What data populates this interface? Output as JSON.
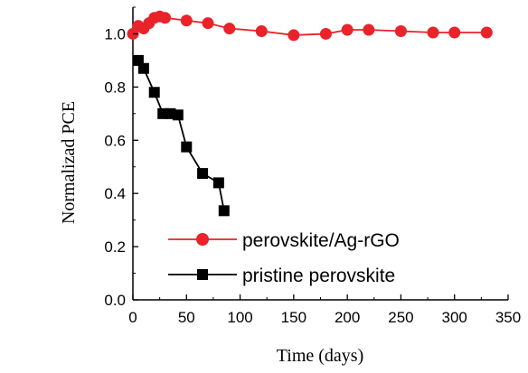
{
  "chart_data": {
    "type": "line",
    "xlabel": "Time (days)",
    "ylabel": "Normalizad PCE",
    "xlim": [
      0,
      350
    ],
    "ylim": [
      0.0,
      1.1
    ],
    "x_ticks": [
      0,
      50,
      100,
      150,
      200,
      250,
      300,
      350
    ],
    "x_tick_labels": [
      "0",
      "50",
      "100",
      "150",
      "200",
      "250",
      "300",
      "350"
    ],
    "y_ticks": [
      0.0,
      0.2,
      0.4,
      0.6,
      0.8,
      1.0
    ],
    "y_tick_labels": [
      "0.0",
      "0.2",
      "0.4",
      "0.6",
      "0.8",
      "1.0"
    ],
    "grid": false,
    "legend_position": "bottom-right",
    "series": [
      {
        "name": "perovskite/Ag-rGO",
        "color": "#e8232a",
        "marker": "circle",
        "x": [
          0,
          5,
          10,
          15,
          20,
          25,
          30,
          50,
          70,
          90,
          120,
          150,
          180,
          200,
          220,
          250,
          280,
          300,
          330
        ],
        "y": [
          1.0,
          1.03,
          1.02,
          1.04,
          1.06,
          1.065,
          1.06,
          1.05,
          1.04,
          1.02,
          1.01,
          0.995,
          1.0,
          1.015,
          1.015,
          1.01,
          1.005,
          1.005,
          1.005
        ]
      },
      {
        "name": "pristine perovskite",
        "color": "#000000",
        "marker": "square",
        "x": [
          5,
          10,
          20,
          28,
          35,
          42,
          50,
          65,
          80,
          85
        ],
        "y": [
          0.9,
          0.87,
          0.78,
          0.7,
          0.7,
          0.695,
          0.575,
          0.475,
          0.44,
          0.335
        ]
      }
    ]
  }
}
